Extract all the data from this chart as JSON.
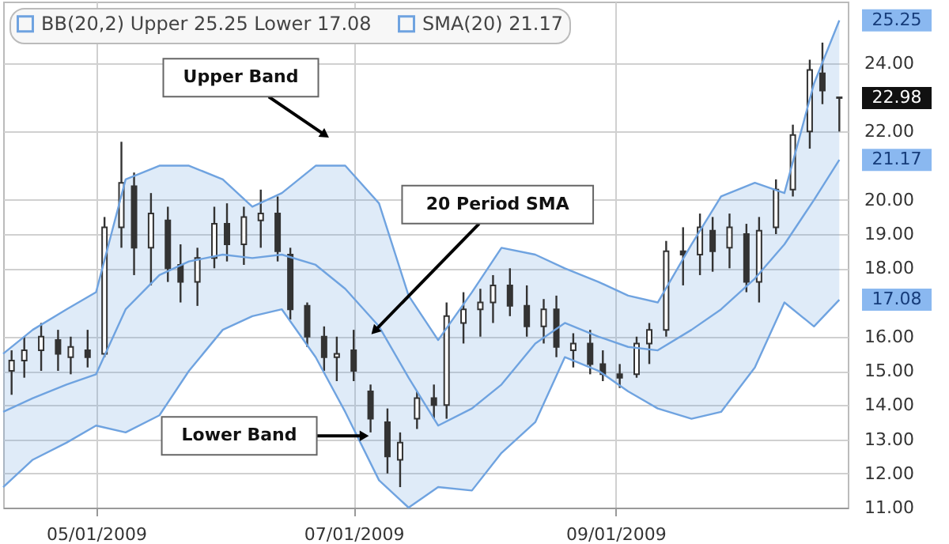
{
  "chart_data": {
    "type": "candlestick",
    "x": [
      "2009-04-11",
      "2009-04-14",
      "2009-04-18",
      "2009-04-22",
      "2009-04-25",
      "2009-04-29",
      "2009-05-03",
      "2009-05-07",
      "2009-05-10",
      "2009-05-14",
      "2009-05-18",
      "2009-05-21",
      "2009-05-25",
      "2009-05-29",
      "2009-06-01",
      "2009-06-05",
      "2009-06-09",
      "2009-06-13",
      "2009-06-16",
      "2009-06-20",
      "2009-06-24",
      "2009-06-27",
      "2009-07-01",
      "2009-07-05",
      "2009-07-09",
      "2009-07-12",
      "2009-07-16",
      "2009-07-20",
      "2009-07-23",
      "2009-07-27",
      "2009-07-31",
      "2009-08-03",
      "2009-08-07",
      "2009-08-11",
      "2009-08-15",
      "2009-08-18",
      "2009-08-22",
      "2009-08-26",
      "2009-08-29",
      "2009-09-02",
      "2009-09-06",
      "2009-09-09",
      "2009-09-13",
      "2009-09-17",
      "2009-09-21",
      "2009-09-24",
      "2009-09-28",
      "2009-10-02",
      "2009-10-05",
      "2009-10-09",
      "2009-10-13",
      "2009-10-17",
      "2009-10-20",
      "2009-10-24"
    ],
    "ohlc": [
      [
        15.0,
        15.6,
        14.3,
        15.3
      ],
      [
        15.3,
        16.0,
        14.8,
        15.6
      ],
      [
        15.6,
        16.4,
        15.0,
        16.0
      ],
      [
        15.9,
        16.2,
        15.0,
        15.5
      ],
      [
        15.4,
        16.0,
        14.9,
        15.7
      ],
      [
        15.6,
        16.2,
        15.1,
        15.4
      ],
      [
        15.5,
        19.5,
        15.4,
        19.2
      ],
      [
        19.2,
        21.7,
        18.6,
        20.5
      ],
      [
        20.4,
        20.8,
        17.8,
        18.6
      ],
      [
        18.6,
        20.2,
        17.5,
        19.6
      ],
      [
        19.4,
        19.8,
        17.6,
        18.0
      ],
      [
        18.1,
        18.7,
        17.0,
        17.6
      ],
      [
        17.6,
        18.6,
        16.9,
        18.3
      ],
      [
        18.3,
        19.8,
        18.0,
        19.3
      ],
      [
        19.3,
        19.9,
        18.2,
        18.7
      ],
      [
        18.7,
        19.8,
        18.1,
        19.5
      ],
      [
        19.4,
        20.3,
        18.6,
        19.6
      ],
      [
        19.6,
        20.1,
        18.2,
        18.5
      ],
      [
        18.4,
        18.6,
        16.5,
        16.8
      ],
      [
        16.9,
        17.0,
        15.7,
        16.0
      ],
      [
        16.0,
        16.3,
        15.0,
        15.4
      ],
      [
        15.4,
        16.0,
        14.7,
        15.5
      ],
      [
        15.6,
        16.2,
        14.7,
        15.0
      ],
      [
        14.4,
        14.6,
        13.2,
        13.6
      ],
      [
        13.5,
        13.9,
        12.0,
        12.5
      ],
      [
        12.4,
        13.2,
        11.6,
        12.9
      ],
      [
        13.6,
        14.4,
        13.3,
        14.2
      ],
      [
        14.2,
        14.6,
        13.6,
        14.0
      ],
      [
        14.0,
        17.0,
        13.6,
        16.6
      ],
      [
        16.4,
        17.3,
        15.8,
        16.8
      ],
      [
        16.8,
        17.4,
        16.0,
        17.0
      ],
      [
        17.0,
        17.8,
        16.4,
        17.5
      ],
      [
        17.5,
        18.0,
        16.6,
        16.9
      ],
      [
        16.9,
        17.5,
        16.0,
        16.3
      ],
      [
        16.3,
        17.1,
        15.8,
        16.8
      ],
      [
        16.8,
        17.2,
        15.4,
        15.7
      ],
      [
        15.6,
        16.1,
        15.1,
        15.8
      ],
      [
        15.8,
        16.2,
        14.9,
        15.2
      ],
      [
        15.2,
        15.6,
        14.7,
        14.9
      ],
      [
        14.9,
        15.2,
        14.5,
        14.8
      ],
      [
        14.9,
        16.0,
        14.8,
        15.8
      ],
      [
        15.8,
        16.4,
        15.2,
        16.2
      ],
      [
        16.2,
        18.8,
        16.0,
        18.5
      ],
      [
        18.5,
        19.2,
        17.5,
        18.4
      ],
      [
        18.4,
        19.6,
        17.8,
        19.2
      ],
      [
        19.1,
        19.5,
        17.9,
        18.5
      ],
      [
        18.6,
        19.6,
        18.0,
        19.2
      ],
      [
        19.0,
        19.3,
        17.3,
        17.6
      ],
      [
        17.6,
        19.5,
        17.0,
        19.1
      ],
      [
        19.2,
        20.6,
        19.0,
        20.3
      ],
      [
        20.3,
        22.2,
        20.1,
        21.9
      ],
      [
        22.0,
        24.1,
        21.5,
        23.8
      ],
      [
        23.7,
        24.6,
        22.8,
        23.2
      ],
      [
        23.0,
        23.0,
        22.0,
        22.98
      ]
    ],
    "series": [
      {
        "name": "BB(20,2) Upper 25.25 Lower 17.08",
        "type": "line",
        "color": "#6fa3e0",
        "x": [
          "2009-04-09",
          "2009-04-16",
          "2009-04-24",
          "2009-05-01",
          "2009-05-08",
          "2009-05-16",
          "2009-05-23",
          "2009-05-31",
          "2009-06-07",
          "2009-06-14",
          "2009-06-22",
          "2009-06-29",
          "2009-07-07",
          "2009-07-14",
          "2009-07-21",
          "2009-07-29",
          "2009-08-05",
          "2009-08-13",
          "2009-08-20",
          "2009-08-28",
          "2009-09-04",
          "2009-09-11",
          "2009-09-19",
          "2009-09-26",
          "2009-10-04",
          "2009-10-11",
          "2009-10-18",
          "2009-10-24"
        ],
        "values": [
          15.5,
          16.2,
          16.8,
          17.3,
          20.6,
          21.0,
          21.0,
          20.6,
          19.8,
          20.2,
          21.0,
          21.0,
          19.9,
          17.2,
          15.9,
          17.3,
          18.6,
          18.4,
          18.0,
          17.6,
          17.2,
          17.0,
          18.7,
          20.1,
          20.5,
          20.2,
          23.4,
          25.25
        ]
      },
      {
        "type": "line",
        "color": "#6fa3e0",
        "x": [
          "2009-04-09",
          "2009-04-16",
          "2009-04-24",
          "2009-05-01",
          "2009-05-08",
          "2009-05-16",
          "2009-05-23",
          "2009-05-31",
          "2009-06-07",
          "2009-06-14",
          "2009-06-22",
          "2009-06-29",
          "2009-07-07",
          "2009-07-14",
          "2009-07-21",
          "2009-07-29",
          "2009-08-05",
          "2009-08-13",
          "2009-08-20",
          "2009-08-28",
          "2009-09-04",
          "2009-09-11",
          "2009-09-19",
          "2009-09-26",
          "2009-10-04",
          "2009-10-11",
          "2009-10-18",
          "2009-10-24"
        ],
        "values": [
          11.6,
          12.4,
          12.9,
          13.4,
          13.2,
          13.7,
          15.0,
          16.2,
          16.6,
          16.8,
          15.4,
          13.8,
          11.8,
          11.0,
          11.6,
          11.5,
          12.6,
          13.5,
          15.4,
          15.0,
          14.4,
          13.9,
          13.6,
          13.8,
          15.1,
          17.0,
          16.3,
          17.08
        ]
      },
      {
        "name": "SMA(20) 21.17",
        "type": "line",
        "color": "#6fa3e0",
        "x": [
          "2009-04-09",
          "2009-04-16",
          "2009-04-24",
          "2009-05-01",
          "2009-05-08",
          "2009-05-16",
          "2009-05-23",
          "2009-05-31",
          "2009-06-07",
          "2009-06-14",
          "2009-06-22",
          "2009-06-29",
          "2009-07-07",
          "2009-07-14",
          "2009-07-21",
          "2009-07-29",
          "2009-08-05",
          "2009-08-13",
          "2009-08-20",
          "2009-08-28",
          "2009-09-04",
          "2009-09-11",
          "2009-09-19",
          "2009-09-26",
          "2009-10-04",
          "2009-10-11",
          "2009-10-18",
          "2009-10-24"
        ],
        "values": [
          13.8,
          14.2,
          14.6,
          14.9,
          16.8,
          17.8,
          18.2,
          18.4,
          18.3,
          18.4,
          18.1,
          17.4,
          16.3,
          14.8,
          13.4,
          13.9,
          14.6,
          15.8,
          16.4,
          16.0,
          15.7,
          15.6,
          16.2,
          16.8,
          17.7,
          18.7,
          20.0,
          21.17
        ],
        "upper": [
          15.5,
          16.2,
          16.8,
          17.3,
          20.6,
          21.0,
          21.0,
          20.6,
          19.8,
          20.2,
          21.0,
          21.0,
          19.9,
          17.2,
          15.9,
          17.3,
          18.6,
          18.4,
          18.0,
          17.6,
          17.2,
          17.0,
          18.7,
          20.1,
          20.5,
          20.2,
          23.4,
          25.25
        ],
        "lower": [
          11.6,
          12.4,
          12.9,
          13.4,
          13.2,
          13.7,
          15.0,
          16.2,
          16.6,
          16.8,
          15.4,
          13.8,
          11.8,
          11.0,
          11.6,
          11.5,
          12.6,
          13.5,
          15.4,
          15.0,
          14.4,
          13.9,
          13.6,
          13.8,
          15.1,
          17.0,
          16.3,
          17.08
        ]
      }
    ],
    "xlim": [
      "2009-04-09",
      "2009-10-26"
    ],
    "xticks": [
      {
        "value": "2009-05-01",
        "label": "05/01/2009"
      },
      {
        "value": "2009-07-01",
        "label": "07/01/2009"
      },
      {
        "value": "2009-09-01",
        "label": "09/01/2009"
      }
    ],
    "ylim": [
      11,
      25.8
    ],
    "yticks": [
      {
        "value": 11,
        "label": "11.00"
      },
      {
        "value": 12,
        "label": "12.00"
      },
      {
        "value": 13,
        "label": "13.00"
      },
      {
        "value": 14,
        "label": "14.00"
      },
      {
        "value": 15,
        "label": "15.00"
      },
      {
        "value": 16,
        "label": "16.00"
      },
      {
        "value": 18,
        "label": "18.00"
      },
      {
        "value": 19,
        "label": "19.00"
      },
      {
        "value": 20,
        "label": "20.00"
      },
      {
        "value": 22,
        "label": "22.00"
      },
      {
        "value": 24,
        "label": "24.00"
      }
    ],
    "annotations": [
      {
        "text": "Upper Band",
        "x": "2009-06-23",
        "y": 22.0
      },
      {
        "text": "20 Period SMA",
        "x": "2009-07-07",
        "y": 16.3
      },
      {
        "text": "Lower Band",
        "x": "2009-07-02",
        "y": 13.1
      },
      {
        "text": "25.25",
        "x": "2009-10-24",
        "y": 25.25
      },
      {
        "text": "22.98",
        "x": "2009-10-24",
        "y": 22.98
      },
      {
        "text": "21.17",
        "x": "2009-10-24",
        "y": 21.17
      },
      {
        "text": "17.08",
        "x": "2009-10-24",
        "y": 17.08
      }
    ],
    "grid": true,
    "legend": "top left"
  }
}
